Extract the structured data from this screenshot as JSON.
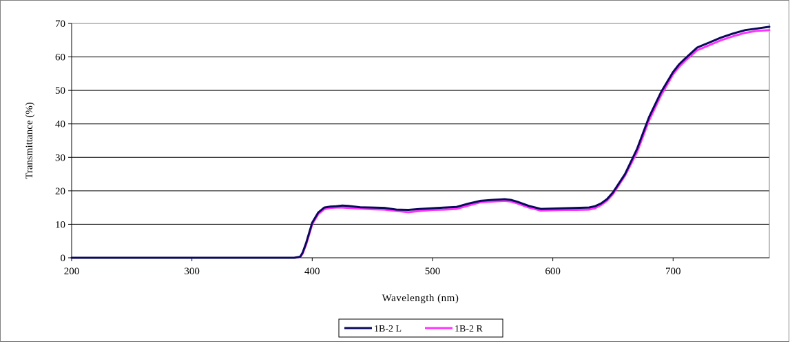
{
  "chart_data": {
    "type": "line",
    "title": "",
    "xlabel": "Wavelength (nm)",
    "ylabel": "Transmittance (%)",
    "xlim": [
      200,
      780
    ],
    "ylim": [
      0,
      70
    ],
    "xticks": [
      "200",
      "300",
      "400",
      "500",
      "600",
      "700"
    ],
    "yticks": [
      "0",
      "10",
      "20",
      "30",
      "40",
      "50",
      "60",
      "70"
    ],
    "grid": "horizontal",
    "legend_position": "bottom",
    "series": [
      {
        "name": "1B-2 L",
        "color": "#0a0a5c",
        "x": [
          200,
          385,
          390,
          392,
          395,
          400,
          405,
          410,
          415,
          420,
          425,
          430,
          440,
          450,
          460,
          470,
          480,
          490,
          500,
          510,
          520,
          530,
          540,
          550,
          560,
          565,
          570,
          580,
          590,
          600,
          610,
          620,
          630,
          635,
          640,
          645,
          650,
          660,
          670,
          680,
          690,
          700,
          705,
          710,
          720,
          730,
          740,
          750,
          760,
          770,
          780
        ],
        "y": [
          0,
          0,
          0.3,
          1.5,
          4.5,
          10.5,
          13.5,
          15,
          15.3,
          15.4,
          15.6,
          15.5,
          15.1,
          15,
          14.9,
          14.4,
          14.3,
          14.6,
          14.8,
          15,
          15.2,
          16.2,
          17,
          17.3,
          17.5,
          17.3,
          16.8,
          15.5,
          14.6,
          14.7,
          14.8,
          14.9,
          15,
          15.4,
          16.2,
          17.5,
          19.5,
          25,
          32.5,
          42,
          49.5,
          55.5,
          57.8,
          59.5,
          62.8,
          64.3,
          65.8,
          67,
          68,
          68.5,
          69
        ]
      },
      {
        "name": "1B-2 R",
        "color": "#ff33ff",
        "x": [
          200,
          385,
          390,
          392,
          395,
          400,
          405,
          410,
          415,
          420,
          425,
          430,
          440,
          450,
          460,
          470,
          480,
          490,
          500,
          510,
          520,
          530,
          540,
          550,
          560,
          565,
          570,
          580,
          590,
          600,
          610,
          620,
          630,
          635,
          640,
          645,
          650,
          660,
          670,
          680,
          690,
          700,
          705,
          710,
          720,
          730,
          740,
          750,
          760,
          770,
          780
        ],
        "y": [
          0,
          0,
          0.2,
          1.2,
          4,
          10,
          13,
          14.5,
          14.9,
          15,
          15,
          14.9,
          14.7,
          14.5,
          14.4,
          14,
          13.6,
          14,
          14.3,
          14.4,
          14.6,
          15.6,
          16.6,
          16.8,
          17,
          16.8,
          16.3,
          15,
          14.1,
          14.2,
          14.3,
          14.3,
          14.4,
          14.8,
          15.7,
          17,
          19,
          24.5,
          31.5,
          41,
          48.5,
          54.8,
          57,
          58.8,
          62,
          63.5,
          65,
          66.2,
          67.2,
          67.8,
          68
        ]
      }
    ]
  }
}
